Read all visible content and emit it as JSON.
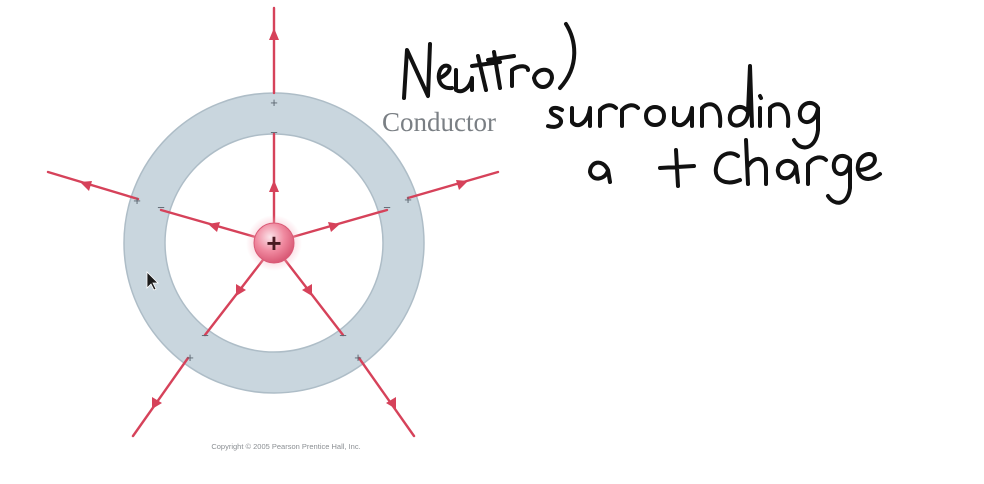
{
  "diagram": {
    "conductor_label": "Conductor",
    "copyright": "Copyright © 2005 Pearson Prentice Hall, Inc.",
    "central_charge_symbol": "+",
    "inner_surface_charge_symbol": "−",
    "outer_surface_charge_symbol": "+",
    "field_line_count": 5
  },
  "handwritten": {
    "line1": "Neutral",
    "line2": "surrounding",
    "line3": "a + charge"
  },
  "colors": {
    "field_line": "#d6425a",
    "conductor_fill": "#c9d6de",
    "conductor_edge": "#aebdc7",
    "charge_sphere": "#f08aa0",
    "handwriting": "#111111"
  }
}
